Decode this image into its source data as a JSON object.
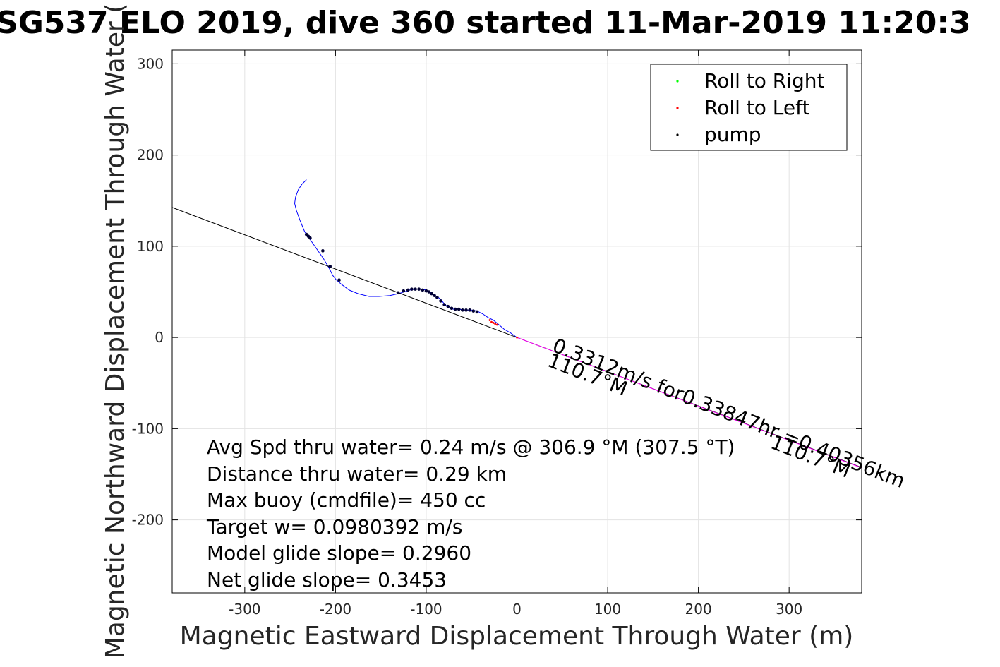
{
  "chart_data": {
    "type": "line",
    "title": "SG537 ELO 2019, dive 360 started 11-Mar-2019 11:20:3",
    "xlabel": "Magnetic Eastward Displacement Through Water (m)",
    "ylabel": "Magnetic Northward Displacement Through Water (",
    "xlim": [
      -380,
      380
    ],
    "ylim": [
      -280,
      315
    ],
    "xticks": [
      -300,
      -200,
      -100,
      0,
      100,
      200,
      300
    ],
    "yticks": [
      -200,
      -100,
      0,
      100,
      200,
      300
    ],
    "grid": true,
    "legend_position": "top-right",
    "legend": [
      {
        "label": "Roll to Right",
        "color": "#00ff00"
      },
      {
        "label": "Roll to Left",
        "color": "#ff0000"
      },
      {
        "label": "pump",
        "color": "#000000"
      }
    ],
    "series": [
      {
        "color": "#0000ff",
        "x": [
          -232,
          -237,
          -241,
          -244,
          -245,
          -243,
          -239,
          -234,
          -227,
          -220,
          -213,
          -207,
          -203,
          -199,
          -193,
          -185,
          -175,
          -163,
          -152,
          -140,
          -131,
          -124,
          -118,
          -112,
          -106,
          -100,
          -96,
          -93,
          -90,
          -87,
          -84,
          -81,
          -78,
          -74,
          -70,
          -64,
          -57,
          -50,
          -44,
          -38,
          -32,
          -26,
          -21,
          -14,
          -7,
          0
        ],
        "y": [
          173,
          168,
          162,
          154,
          147,
          139,
          128,
          116,
          106,
          96,
          86,
          76,
          68,
          63,
          58,
          52,
          48,
          45,
          45,
          46,
          48,
          50,
          52,
          53,
          53,
          52,
          50,
          48,
          46,
          44,
          42,
          38,
          35,
          33,
          31,
          31,
          30,
          30,
          29,
          26,
          22,
          19,
          15,
          9,
          5,
          0
        ]
      },
      {
        "color": "#000000",
        "x": [
          -380,
          380
        ],
        "y": [
          142.5,
          -142.5
        ]
      },
      {
        "color": "#ff00ff",
        "x": [
          0,
          380
        ],
        "y": [
          0,
          -143
        ]
      }
    ],
    "pump_points": {
      "color": "#000033",
      "x": [
        -232,
        -230,
        -228,
        -214,
        -206,
        -196,
        -131,
        -125,
        -120,
        -116,
        -112,
        -108,
        -104,
        -100,
        -97,
        -94,
        -91,
        -88,
        -84,
        -80,
        -76,
        -72,
        -68,
        -64,
        -60,
        -56,
        -52,
        -48,
        -44
      ],
      "y": [
        113,
        111,
        109,
        95,
        78,
        63,
        49,
        51,
        52,
        53,
        53,
        53,
        52,
        51,
        50,
        48,
        46,
        44,
        40,
        36,
        34,
        32,
        31,
        31,
        30,
        30,
        30,
        29,
        28
      ]
    },
    "roll_left_points": {
      "color": "#ff0000",
      "x": [
        -30,
        -28,
        -26,
        -24,
        -22,
        0
      ],
      "y": [
        19,
        17,
        16,
        15,
        14,
        0
      ]
    },
    "annotations": [
      {
        "text": "0.3312m/s for0.33847hr =0.40356km"
      },
      {
        "text": "110.7°M"
      },
      {
        "text": "110.7°M"
      }
    ],
    "info_lines": [
      "Avg Spd thru water=  0.24 m/s @ 306.9 °M (307.5 °T)",
      "Distance thru water=  0.29 km",
      "Max buoy (cmdfile)= 450 cc",
      "Target w= 0.0980392 m/s",
      "Model glide slope= 0.2960",
      "Net glide slope= 0.3453"
    ]
  }
}
